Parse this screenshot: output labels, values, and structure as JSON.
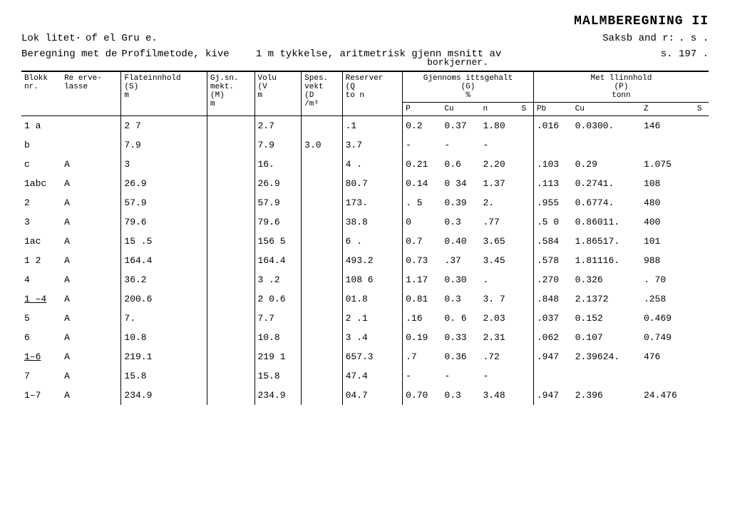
{
  "title": "MALMBEREGNING II",
  "lokLabel": "Lok litet·",
  "lokValue": "of el  Gru e.",
  "saksbLabel": "Saksb  and r:",
  "saksbValue": ".    s .",
  "beregLabel": "Beregning met de",
  "beregMethod": "Profilmetode,  kive",
  "beregText": "1 m tykkelse, aritmetrisk gjenn msnitt av",
  "pageLabel": "s. 197 .",
  "subnote": "borkjerner.",
  "columns": {
    "blokk": "Blokk\nnr.",
    "re": "Re erve-\nlasse",
    "flate": "Flateinnhold\n(S)\nm",
    "gjsnm": "Gj.sn.\nmekt.\n(M)\nm",
    "volu": "Volu\n(V\nm",
    "spes": "Spes.\nvekt\n(D\n/m³",
    "res": "Reserver\n(Q\nto n",
    "gjennGroup": "Gjennoms ittsgehalt\n(G)\n%",
    "gP": "P",
    "gCu": "Cu",
    "gn": "n",
    "gS": "S",
    "metGroup": "Met llinnhold\n(P)\ntonn",
    "mPb": "Pb",
    "mCu": "Cu",
    "mZ": "Z",
    "mS": "S"
  },
  "rows": [
    {
      "blokk": "1 a",
      "re": "",
      "S": "2 7",
      "M": "",
      "V": "2.7",
      "D": "",
      "Q": ".1",
      "P": "0.2",
      "Cu": "0.37",
      "n": "1.80",
      "Sg": "",
      "Pb": ".016",
      "mCu": "0.0300.",
      "Z": "146",
      "mS": ""
    },
    {
      "blokk": "b",
      "re": "",
      "S": "7.9",
      "M": "",
      "V": "7.9",
      "D": "3.0",
      "Q": "3.7",
      "P": "-",
      "Cu": "-",
      "n": "-",
      "Sg": "",
      "Pb": "",
      "mCu": "",
      "Z": "",
      "mS": ""
    },
    {
      "blokk": "c",
      "re": "A",
      "S": "3",
      "M": "",
      "V": "16.",
      "D": "",
      "Q": "4 .",
      "P": "0.21",
      "Cu": "0.6",
      "n": "2.20",
      "Sg": "",
      "Pb": ".103",
      "mCu": "0.29",
      "Z": "1.075",
      "mS": ""
    },
    {
      "blokk": "1abc",
      "re": "A",
      "S": "26.9",
      "M": "",
      "V": "26.9",
      "D": "",
      "Q": "80.7",
      "P": "0.14",
      "Cu": "0 34",
      "n": "1.37",
      "Sg": "",
      "Pb": ".113",
      "mCu": "0.2741.",
      "Z": "108",
      "mS": ""
    },
    {
      "blokk": "2",
      "re": "A",
      "S": "57.9",
      "M": "",
      "V": "57.9",
      "D": "",
      "Q": "173.",
      "P": ". 5",
      "Cu": "0.39",
      "n": "2.",
      "Sg": "",
      "Pb": ".955",
      "mCu": "0.6774.",
      "Z": "480",
      "mS": ""
    },
    {
      "blokk": "3",
      "re": "A",
      "S": "79.6",
      "M": "",
      "V": "79.6",
      "D": "",
      "Q": "38.8",
      "P": "0",
      "Cu": "0.3",
      "n": ".77",
      "Sg": "",
      "Pb": ".5 0",
      "mCu": "0.86011.",
      "Z": "400",
      "mS": ""
    },
    {
      "blokk": "1ac",
      "re": "A",
      "S": "15 .5",
      "M": "",
      "V": "156 5",
      "D": "",
      "Q": "6 .",
      "P": "0.7",
      "Cu": "0.40",
      "n": "3.65",
      "Sg": "",
      "Pb": ".584",
      "mCu": "1.86517.",
      "Z": "101",
      "mS": ""
    },
    {
      "blokk": "1 2",
      "re": "A",
      "S": "164.4",
      "M": "",
      "V": "164.4",
      "D": "",
      "Q": "493.2",
      "P": "0.73",
      "Cu": ".37",
      "n": "3.45",
      "Sg": "",
      "Pb": ".578",
      "mCu": "1.81116.",
      "Z": "988",
      "mS": ""
    },
    {
      "blokk": "4",
      "re": "A",
      "S": "36.2",
      "M": "",
      "V": "3 .2",
      "D": "",
      "Q": "108 6",
      "P": "1.17",
      "Cu": "0.30",
      "n": ".",
      "Sg": "",
      "Pb": ".270",
      "mCu": "0.326",
      "Z": ". 70",
      "mS": ""
    },
    {
      "blokk": "1 –4",
      "re": "A",
      "S": "200.6",
      "M": "",
      "V": "2 0.6",
      "D": "",
      "Q": "01.8",
      "P": "0.81",
      "Cu": "0.3",
      "n": "3. 7",
      "Sg": "",
      "Pb": ".848",
      "mCu": "2.1372",
      "Z": ".258",
      "mS": "",
      "u": true
    },
    {
      "blokk": "5",
      "re": "A",
      "S": "7.",
      "M": "",
      "V": "7.7",
      "D": "",
      "Q": "2 .1",
      "P": ".16",
      "Cu": "0. 6",
      "n": "2.03",
      "Sg": "",
      "Pb": ".037",
      "mCu": "0.152",
      "Z": "0.469",
      "mS": ""
    },
    {
      "blokk": "6",
      "re": "A",
      "S": "10.8",
      "M": "",
      "V": "10.8",
      "D": "",
      "Q": "3 .4",
      "P": "0.19",
      "Cu": "0.33",
      "n": "2.31",
      "Sg": "",
      "Pb": ".062",
      "mCu": "0.107",
      "Z": "0.749",
      "mS": ""
    },
    {
      "blokk": "1–6",
      "re": "A",
      "S": "219.1",
      "M": "",
      "V": "219 1",
      "D": "",
      "Q": "657.3",
      "P": ".7",
      "Cu": "0.36",
      "n": ".72",
      "Sg": "",
      "Pb": ".947",
      "mCu": "2.39624.",
      "Z": "476",
      "mS": "",
      "u": true
    },
    {
      "blokk": "7",
      "re": "A",
      "S": "15.8",
      "M": "",
      "V": "15.8",
      "D": "",
      "Q": "47.4",
      "P": "-",
      "Cu": "-",
      "n": "-",
      "Sg": "",
      "Pb": "",
      "mCu": "",
      "Z": "",
      "mS": ""
    },
    {
      "blokk": "1–7",
      "re": "A",
      "S": "234.9",
      "M": "",
      "V": "234.9",
      "D": "",
      "Q": "04.7",
      "P": "0.70",
      "Cu": "0.3",
      "n": "3.48",
      "Sg": "",
      "Pb": ".947",
      "mCu": "2.396",
      "Z": "24.476",
      "mS": ""
    }
  ],
  "style": {
    "font": "Courier New",
    "title_fontsize": 18,
    "body_fontsize": 13,
    "header_fontsize": 11,
    "bg": "#ffffff",
    "fg": "#000000",
    "rule_color": "#000000"
  }
}
